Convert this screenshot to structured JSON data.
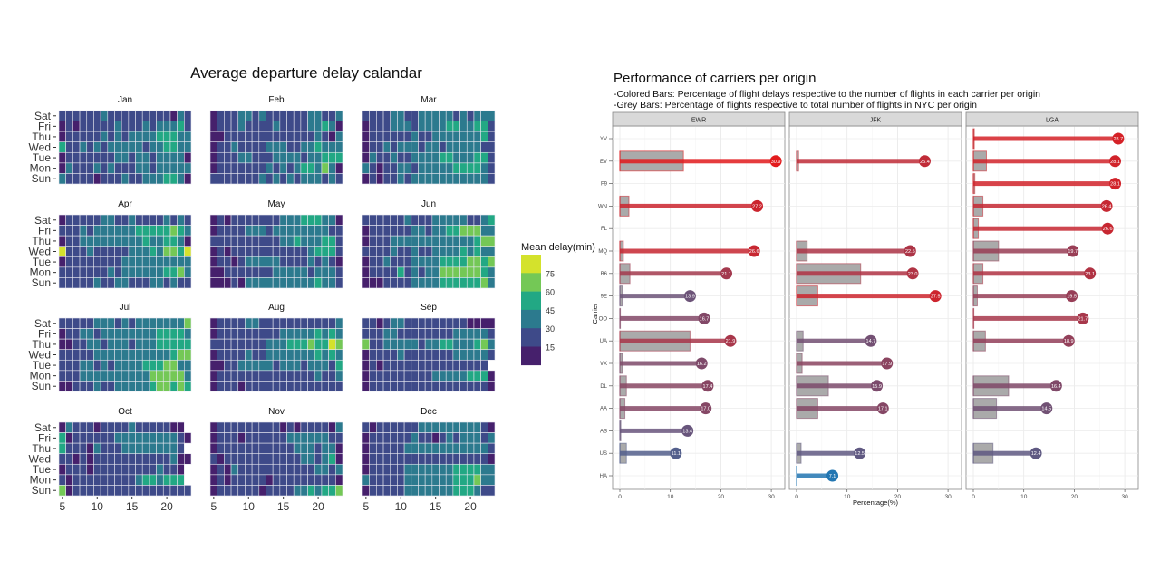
{
  "chart_data": [
    {
      "type": "heatmap",
      "title": "Average departure delay calandar",
      "legend_title": "Mean delay(min)",
      "legend_breaks": [
        75,
        60,
        45,
        30,
        15
      ],
      "bins": [
        {
          "range": "<15",
          "color": "#46206c"
        },
        {
          "range": "15-30",
          "color": "#3e4a89"
        },
        {
          "range": "30-45",
          "color": "#2c7a8e"
        },
        {
          "range": "45-60",
          "color": "#22a884"
        },
        {
          "range": "60-75",
          "color": "#74c856"
        },
        {
          "range": ">75",
          "color": "#d4e22c"
        }
      ],
      "x_hours": [
        5,
        23
      ],
      "x_ticks": [
        5,
        10,
        15,
        20
      ],
      "days": [
        "Sat",
        "Fri",
        "Thu",
        "Wed",
        "Tue",
        "Mon",
        "Sun"
      ],
      "legend_placement": "right",
      "months": [
        {
          "name": "Jan",
          "bin_rows": [
            "1111112111111111021",
            "0101111121112122231",
            "0111112121222233322",
            "3112121222221223322",
            "0111111122122122220",
            "0211121211122122222",
            "2111101112112223320"
          ]
        },
        {
          "name": "Feb",
          "bin_rows": [
            "0111221211111122112",
            "0111211112111122320",
            "0011111111111112102",
            "0112111122211223222",
            "0111221112222122333",
            "0111111121212332420",
            "1111111212121222121"
          ]
        },
        {
          "name": "Mar",
          "bin_rows": [
            "1111221122222121222",
            "0111222122223322331",
            "0111111211222222231",
            "0112122212212222211",
            "0211211222233222331",
            "2101122122222333321",
            "0101121222222222221"
          ]
        },
        {
          "name": "Apr",
          "bin_rows": [
            "0111112211211112121",
            "1112122222233333432",
            "0112222222223223320",
            "5111211111222324435",
            "0111111112222222222",
            "1111111212222223342",
            "1111121122111221211"
          ]
        },
        {
          "name": "May",
          "bin_rows": [
            "0101111111222333220",
            "0111122212222222211",
            "1111111111223222331",
            "0101111111111123331",
            "0110122222111121210",
            "0011111112222212221",
            "0001022222222223221"
          ]
        },
        {
          "name": "Jun",
          "bin_rows": [
            "1111112111222221123",
            "0111111221223344422",
            "0111222222222222344",
            "1111211211222232322",
            "0112111222233334434",
            "0111131212244444432",
            "0001111222233333342"
          ]
        },
        {
          "name": "Jul",
          "bin_rows": [
            "1111122212122222224",
            "0112212222222233332",
            "0011221222122233333",
            "1111122222222222344",
            "1112212122223334422",
            "1112222222222444442",
            "0011121122222344343"
          ]
        },
        {
          "name": "Aug",
          "bin_rows": [
            "0111122111111111112",
            "0111111111222223232",
            "1111111122233343354",
            "0111121122222223232",
            "0011222221222122213",
            "0111111111111112112",
            "0111011111111111111"
          ]
        },
        {
          "name": "Sep",
          "bin_rows": [
            "1101221111111110000",
            "1112211111111222221",
            "4112222212233222342",
            "0111121111111222221",
            "010111111111111111-",
            "0111111111222223330",
            "0111111111111111110"
          ]
        },
        {
          "name": "Oct",
          "bin_rows": [
            "021110111121111100-",
            "3011111122222222210",
            "311102111222222221-",
            "1101011111111111200",
            "011101111111112110-",
            "101111111112332333-",
            "4011111111111111111"
          ]
        },
        {
          "name": "Nov",
          "bin_rows": [
            "0111111111010111102",
            "0111011111122222211",
            "0111111111112221220",
            "1011111111111221230",
            "0102111111111112212",
            "0101111101111111110",
            "0111111011112232334"
          ]
        },
        {
          "name": "Dec",
          "bin_rows": [
            "1011111122222222210",
            "0111111211012122212",
            "0111112222222222221",
            "0111111111111111110",
            "0111112222222333322",
            "2111112222222333422",
            "0111112222222333211"
          ]
        }
      ]
    },
    {
      "type": "bar",
      "title": "Performance of carriers per origin",
      "subtitle": [
        "-Colored Bars: Percentage of flight delays respective to the number of flights in each carrier per origin",
        "-Grey Bars: Percentage of flights respective to total number of flights in NYC per origin"
      ],
      "xlabel": "Percentage(%)",
      "ylabel": "Carrier",
      "xlim": [
        0,
        31
      ],
      "x_ticks": [
        0,
        10,
        20,
        30
      ],
      "grid": true,
      "carriers": [
        "YV",
        "EV",
        "F9",
        "WN",
        "FL",
        "MQ",
        "B6",
        "9E",
        "OO",
        "UA",
        "VX",
        "DL",
        "AA",
        "AS",
        "US",
        "HA"
      ],
      "color_low": "#1f78b4",
      "color_high": "#e31a1c",
      "grey_bar_color": "#aaaaaa",
      "facets": [
        {
          "name": "EWR",
          "rows": [
            {
              "carrier": "EV",
              "delay": 30.9,
              "share": 12.6
            },
            {
              "carrier": "WN",
              "delay": 27.2,
              "share": 1.8
            },
            {
              "carrier": "MQ",
              "delay": 26.6,
              "share": 0.7
            },
            {
              "carrier": "B6",
              "delay": 21.1,
              "share": 2.0
            },
            {
              "carrier": "9E",
              "delay": 13.9,
              "share": 0.5
            },
            {
              "carrier": "OO",
              "delay": 16.7,
              "share": 0.1
            },
            {
              "carrier": "UA",
              "delay": 21.9,
              "share": 13.9
            },
            {
              "carrier": "VX",
              "delay": 16.2,
              "share": 0.5
            },
            {
              "carrier": "DL",
              "delay": 17.4,
              "share": 1.3
            },
            {
              "carrier": "AA",
              "delay": 17.0,
              "share": 1.0
            },
            {
              "carrier": "AS",
              "delay": 13.4,
              "share": 0.2
            },
            {
              "carrier": "US",
              "delay": 11.1,
              "share": 1.3
            }
          ]
        },
        {
          "name": "JFK",
          "rows": [
            {
              "carrier": "EV",
              "delay": 25.4,
              "share": 0.4
            },
            {
              "carrier": "MQ",
              "delay": 22.5,
              "share": 2.1
            },
            {
              "carrier": "B6",
              "delay": 23.0,
              "share": 12.7
            },
            {
              "carrier": "9E",
              "delay": 27.5,
              "share": 4.2
            },
            {
              "carrier": "UA",
              "delay": 14.7,
              "share": 1.3
            },
            {
              "carrier": "VX",
              "delay": 17.9,
              "share": 1.1
            },
            {
              "carrier": "DL",
              "delay": 15.9,
              "share": 6.3
            },
            {
              "carrier": "AA",
              "delay": 17.1,
              "share": 4.2
            },
            {
              "carrier": "US",
              "delay": 12.5,
              "share": 0.9
            },
            {
              "carrier": "HA",
              "delay": 7.1,
              "share": 0.0
            }
          ]
        },
        {
          "name": "LGA",
          "rows": [
            {
              "carrier": "YV",
              "delay": 28.7,
              "share": 0.2
            },
            {
              "carrier": "EV",
              "delay": 28.1,
              "share": 2.6
            },
            {
              "carrier": "F9",
              "delay": 28.1,
              "share": 0.3
            },
            {
              "carrier": "WN",
              "delay": 26.4,
              "share": 1.9
            },
            {
              "carrier": "FL",
              "delay": 26.6,
              "share": 1.0
            },
            {
              "carrier": "MQ",
              "delay": 19.7,
              "share": 5.0
            },
            {
              "carrier": "B6",
              "delay": 23.1,
              "share": 1.9
            },
            {
              "carrier": "9E",
              "delay": 19.5,
              "share": 0.8
            },
            {
              "carrier": "OO",
              "delay": 21.7,
              "share": 0.1
            },
            {
              "carrier": "UA",
              "delay": 18.9,
              "share": 2.4
            },
            {
              "carrier": "DL",
              "delay": 16.4,
              "share": 7.0
            },
            {
              "carrier": "AA",
              "delay": 14.5,
              "share": 4.6
            },
            {
              "carrier": "US",
              "delay": 12.4,
              "share": 3.9
            }
          ]
        }
      ]
    }
  ]
}
